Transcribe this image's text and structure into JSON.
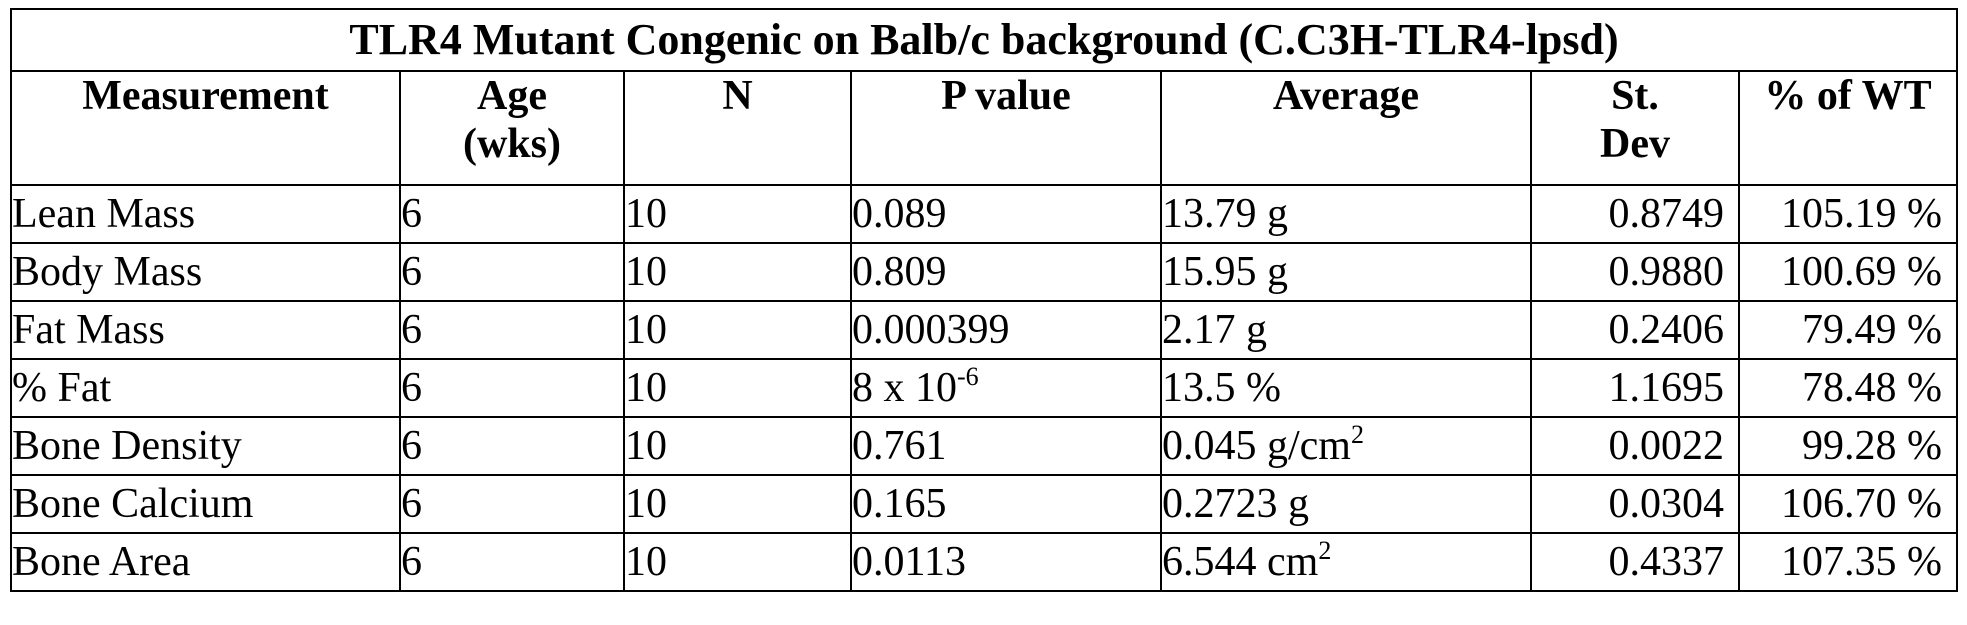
{
  "table": {
    "title": "TLR4 Mutant Congenic on Balb/c background (C.C3H-TLR4-lpsd)",
    "headers": {
      "measurement": "Measurement",
      "age_line1": "Age",
      "age_line2": "(wks)",
      "n": "N",
      "p_value": "P value",
      "average": "Average",
      "st_dev_line1": "St.",
      "st_dev_line2": "Dev",
      "pct_wt": "% of WT"
    },
    "rows": [
      {
        "measurement": "Lean Mass",
        "age": "6",
        "n": "10",
        "p_value": "0.089",
        "p_exp": "",
        "average": "13.79 g",
        "average_sup": "",
        "st_dev": "0.8749",
        "pct_wt": "105.19 %"
      },
      {
        "measurement": "Body Mass",
        "age": "6",
        "n": "10",
        "p_value": "0.809",
        "p_exp": "",
        "average": "15.95 g",
        "average_sup": "",
        "st_dev": "0.9880",
        "pct_wt": "100.69 %"
      },
      {
        "measurement": "Fat Mass",
        "age": "6",
        "n": "10",
        "p_value": "0.000399",
        "p_exp": "",
        "average": "2.17 g",
        "average_sup": "",
        "st_dev": "0.2406",
        "pct_wt": "79.49 %"
      },
      {
        "measurement": "% Fat",
        "age": "6",
        "n": "10",
        "p_value": "8 x 10",
        "p_exp": "-6",
        "average": "13.5 %",
        "average_sup": "",
        "st_dev": "1.1695",
        "pct_wt": "78.48 %"
      },
      {
        "measurement": "Bone Density",
        "age": "6",
        "n": "10",
        "p_value": "0.761",
        "p_exp": "",
        "average": "0.045 g/cm",
        "average_sup": "2",
        "st_dev": "0.0022",
        "pct_wt": "99.28 %"
      },
      {
        "measurement": "Bone Calcium",
        "age": "6",
        "n": "10",
        "p_value": "0.165",
        "p_exp": "",
        "average": "0.2723 g",
        "average_sup": "",
        "st_dev": "0.0304",
        "pct_wt": "106.70 %"
      },
      {
        "measurement": "Bone Area",
        "age": "6",
        "n": "10",
        "p_value": "0.0113",
        "p_exp": "",
        "average": "6.544 cm",
        "average_sup": "2",
        "st_dev": "0.4337",
        "pct_wt": "107.35 %"
      }
    ]
  }
}
